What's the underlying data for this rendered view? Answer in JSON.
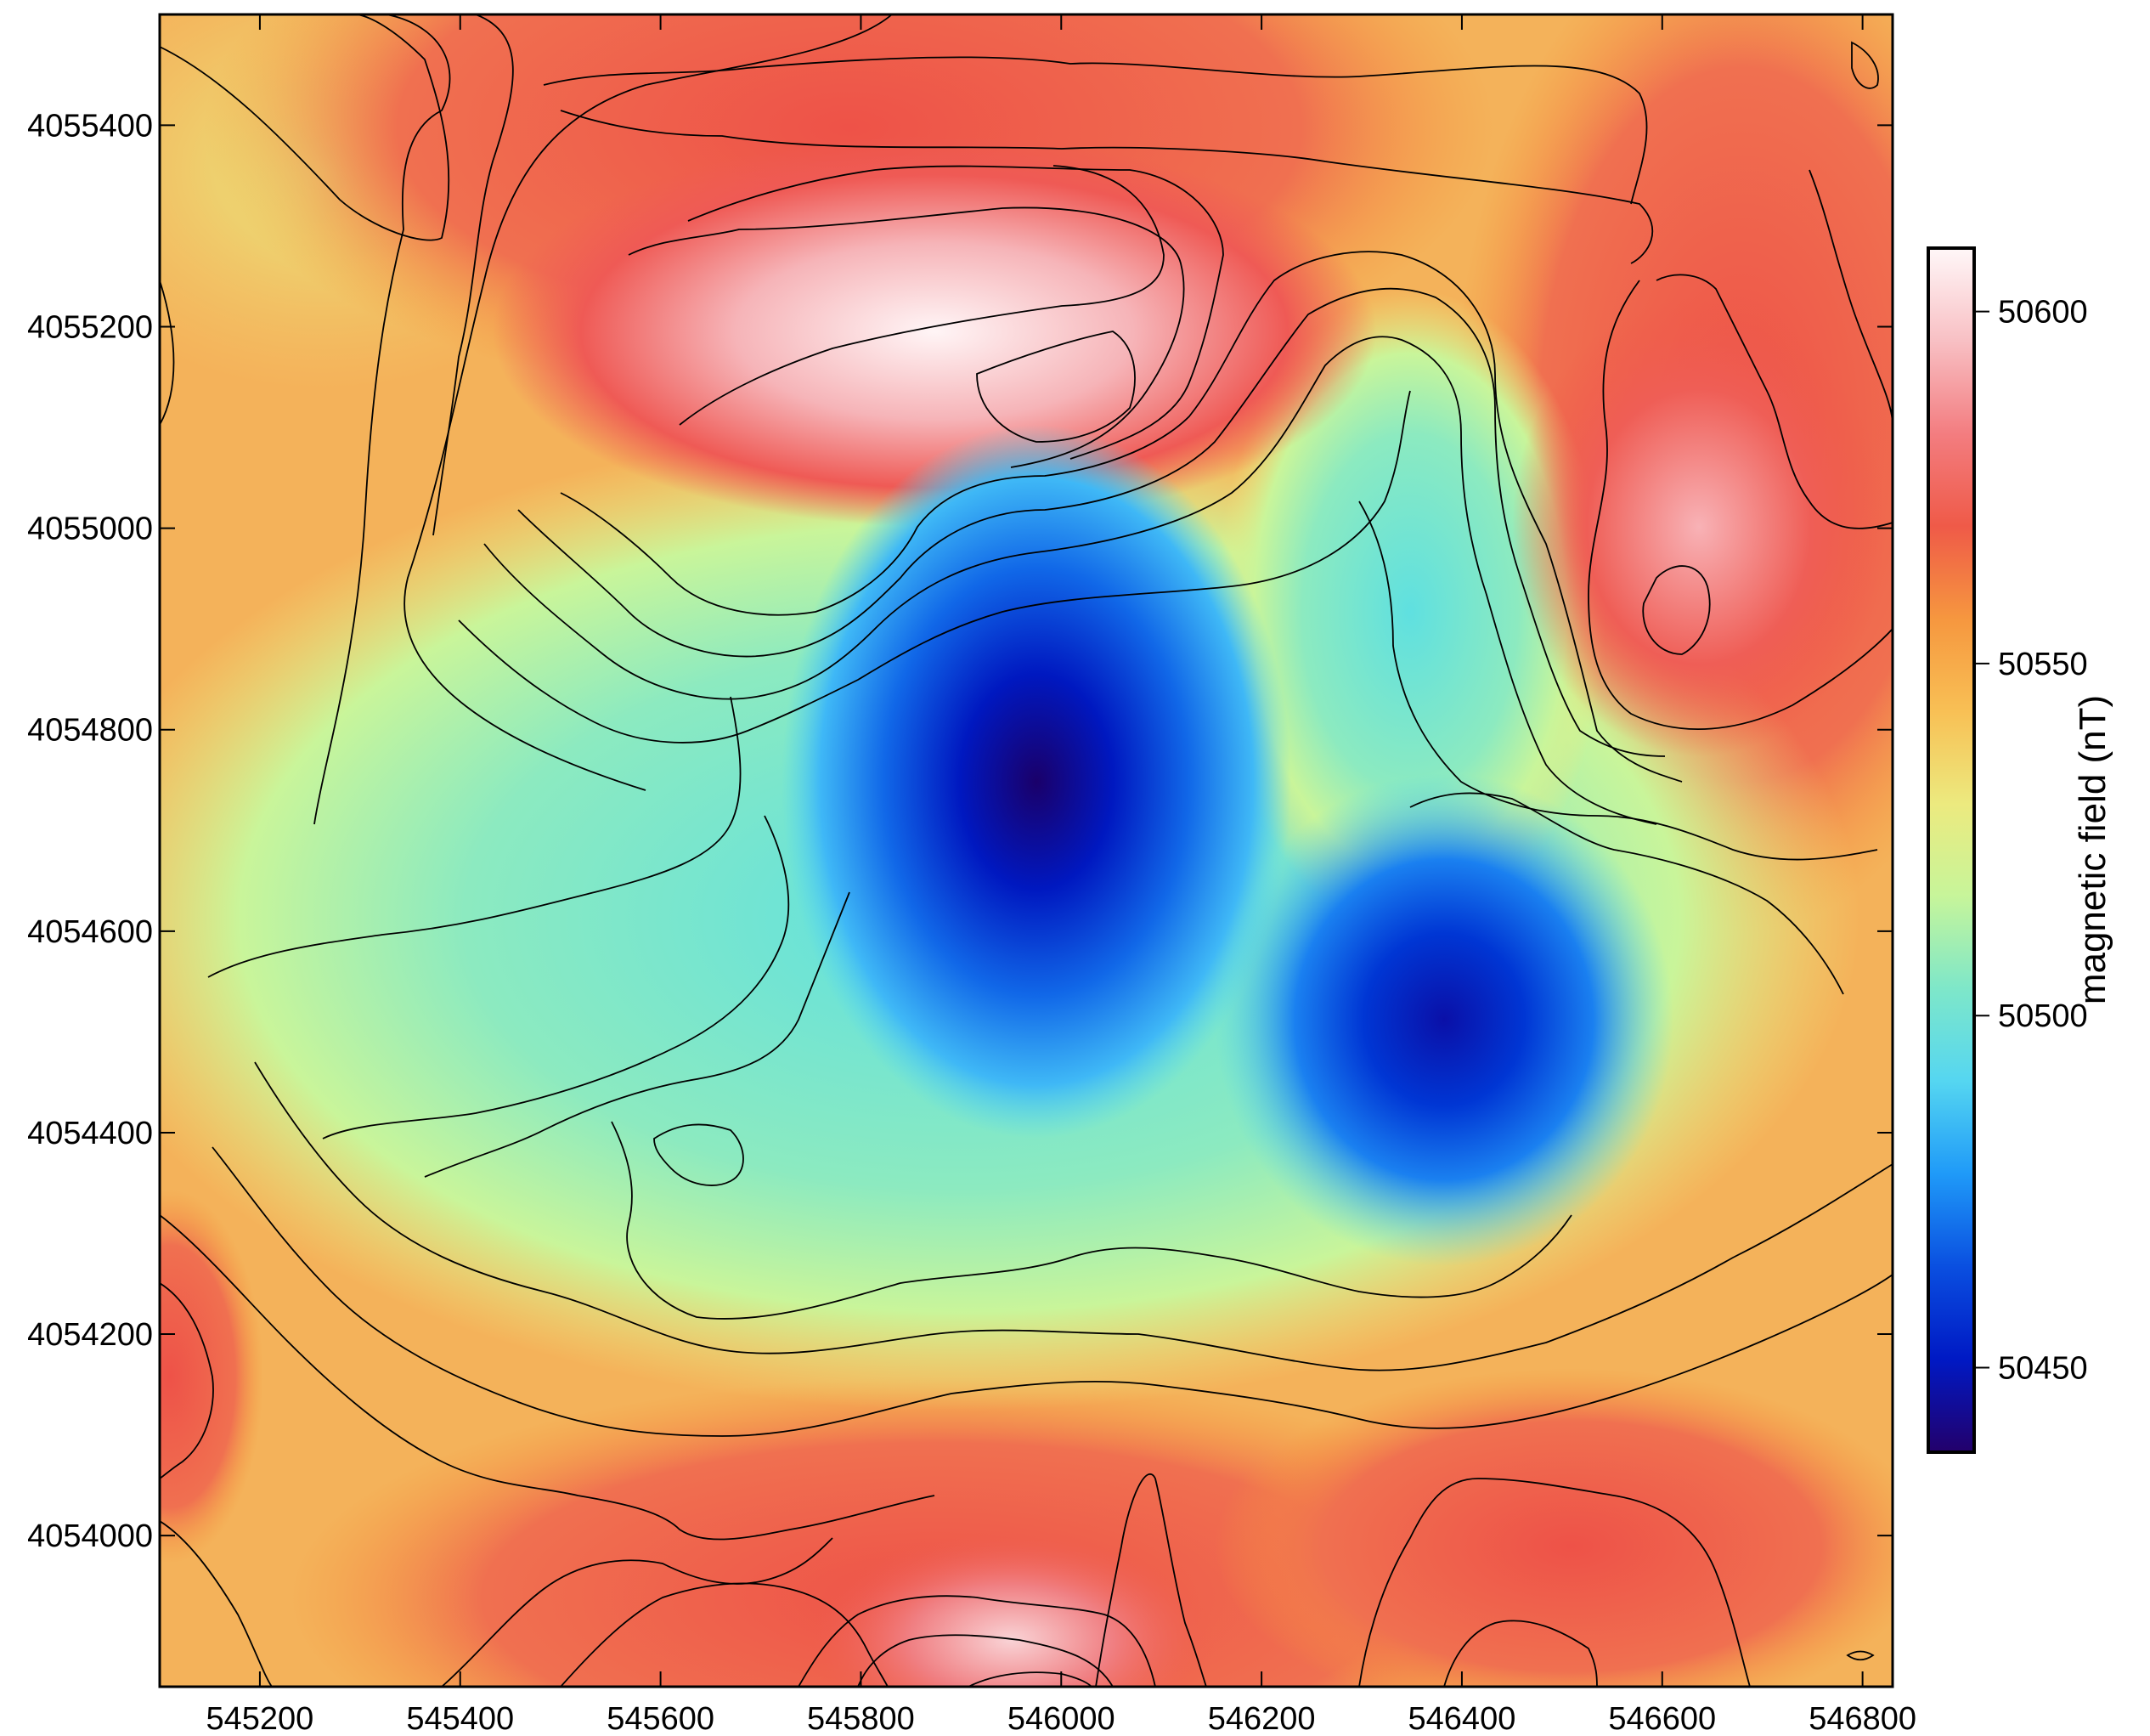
{
  "map": {
    "x_ticks": [
      "545200",
      "545400",
      "545600",
      "545800",
      "546000",
      "546200",
      "546400",
      "546600",
      "546800"
    ],
    "y_ticks": [
      "4055400",
      "4055200",
      "4055000",
      "4054800",
      "4054600",
      "4054400",
      "4054200",
      "4054000"
    ],
    "x_range": [
      545100,
      546830
    ],
    "y_range": [
      4053850,
      4055510
    ]
  },
  "colorbar": {
    "title": "magnetic field (nT)",
    "ticks": [
      "50600",
      "50550",
      "50500",
      "50450"
    ],
    "range": [
      50438,
      50609
    ],
    "colors": [
      "#23006b",
      "#0019c4",
      "#0a4fe0",
      "#1f9af8",
      "#55d6f1",
      "#7ee7c9",
      "#c7f59a",
      "#ecea7f",
      "#f8c055",
      "#f6973f",
      "#ef5a48",
      "#f37d80",
      "#f8c0c4",
      "#fff7f8"
    ]
  }
}
